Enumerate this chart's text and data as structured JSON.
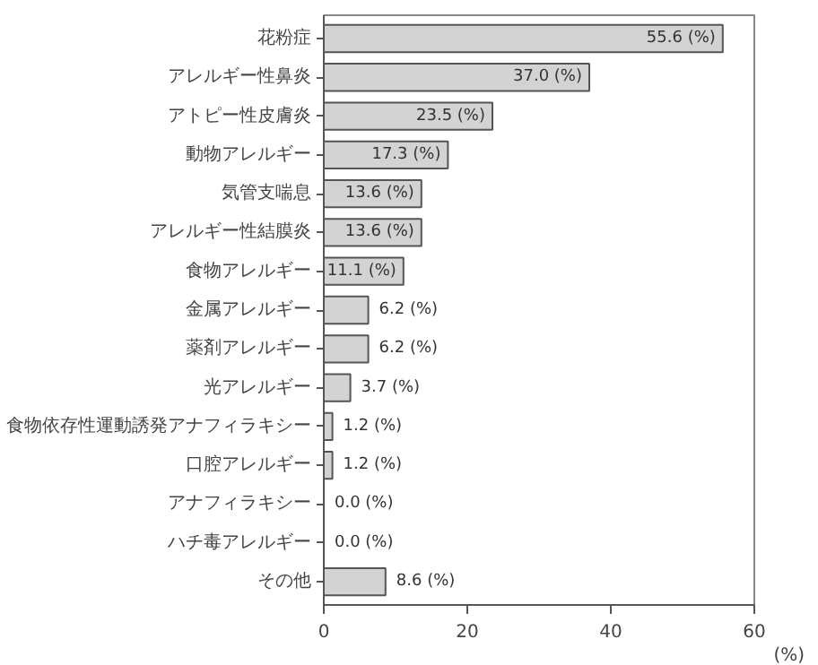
{
  "chart_data": {
    "type": "bar",
    "orientation": "horizontal",
    "categories": [
      "花粉症",
      "アレルギー性鼻炎",
      "アトピー性皮膚炎",
      "動物アレルギー",
      "気管支喘息",
      "アレルギー性結膜炎",
      "食物アレルギー",
      "金属アレルギー",
      "薬剤アレルギー",
      "光アレルギー",
      "食物依存性運動誘発アナフィラキシー",
      "口腔アレルギー",
      "アナフィラキシー",
      "ハチ毒アレルギー",
      "その他"
    ],
    "values": [
      55.6,
      37.0,
      23.5,
      17.3,
      13.6,
      13.6,
      11.1,
      6.2,
      6.2,
      3.7,
      1.2,
      1.2,
      0.0,
      0.0,
      8.6
    ],
    "value_labels": [
      "55.6 (%)",
      "37.0 (%)",
      "23.5 (%)",
      "17.3 (%)",
      "13.6 (%)",
      "13.6 (%)",
      "11.1 (%)",
      "6.2 (%)",
      "6.2 (%)",
      "3.7 (%)",
      "1.2 (%)",
      "1.2 (%)",
      "0.0 (%)",
      "0.0 (%)",
      "8.6 (%)"
    ],
    "color": "#d3d3d3",
    "xlim": [
      0,
      60
    ],
    "xticks": [
      0,
      20,
      40,
      60
    ],
    "xlabel": "(%)",
    "grid": false
  }
}
